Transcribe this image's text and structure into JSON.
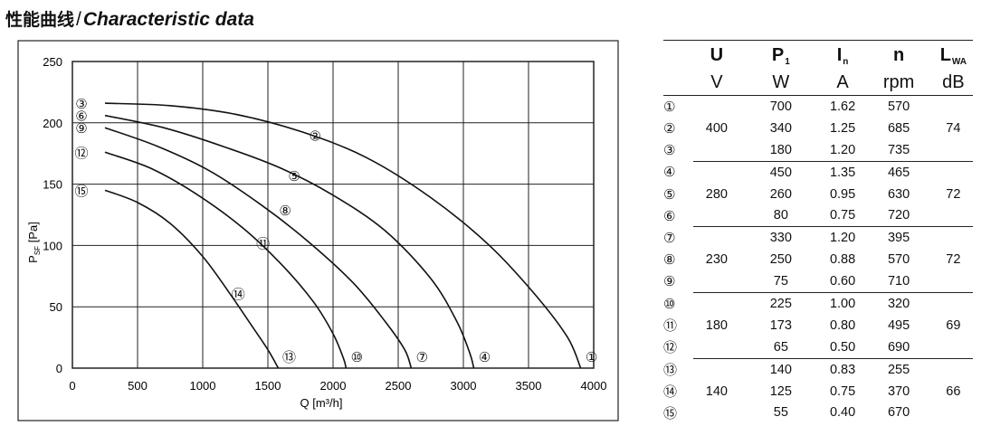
{
  "heading": {
    "cn": "性能曲线",
    "slash": "/",
    "en": "Characteristic data"
  },
  "chart_data": {
    "type": "line",
    "xlabel": "Q [m³/h]",
    "ylabel_main": "P",
    "ylabel_sub": "SF",
    "ylabel_unit": " [Pa]",
    "xlim": [
      0,
      4000
    ],
    "ylim": [
      0,
      250
    ],
    "xticks": [
      0,
      500,
      1000,
      1500,
      2000,
      2500,
      3000,
      3500,
      4000
    ],
    "yticks": [
      0,
      50,
      100,
      150,
      200,
      250
    ],
    "grid": true,
    "series": [
      {
        "name": "①③",
        "start_label": "③",
        "mid_label": "②",
        "end_label": "①",
        "points": [
          [
            250,
            216
          ],
          [
            750,
            214
          ],
          [
            1250,
            207
          ],
          [
            1750,
            193
          ],
          [
            2250,
            172
          ],
          [
            2750,
            139
          ],
          [
            3200,
            100
          ],
          [
            3550,
            60
          ],
          [
            3800,
            25
          ],
          [
            3900,
            0
          ]
        ]
      },
      {
        "name": "④⑥",
        "start_label": "⑥",
        "mid_label": "⑤",
        "end_label": "④",
        "points": [
          [
            250,
            206
          ],
          [
            700,
            196
          ],
          [
            1150,
            181
          ],
          [
            1600,
            163
          ],
          [
            2000,
            141
          ],
          [
            2400,
            112
          ],
          [
            2750,
            73
          ],
          [
            2950,
            38
          ],
          [
            3050,
            12
          ],
          [
            3080,
            0
          ]
        ]
      },
      {
        "name": "⑦⑨",
        "start_label": "⑨",
        "mid_label": "⑧",
        "end_label": "⑦",
        "points": [
          [
            250,
            196
          ],
          [
            650,
            181
          ],
          [
            1050,
            161
          ],
          [
            1450,
            133
          ],
          [
            1800,
            104
          ],
          [
            2150,
            70
          ],
          [
            2400,
            38
          ],
          [
            2550,
            15
          ],
          [
            2600,
            0
          ]
        ]
      },
      {
        "name": "⑩⑫",
        "start_label": "⑫",
        "mid_label": "⑪",
        "end_label": "⑩",
        "points": [
          [
            250,
            176
          ],
          [
            600,
            163
          ],
          [
            950,
            142
          ],
          [
            1300,
            115
          ],
          [
            1600,
            85
          ],
          [
            1850,
            54
          ],
          [
            2000,
            28
          ],
          [
            2080,
            8
          ],
          [
            2100,
            0
          ]
        ]
      },
      {
        "name": "⑬⑮",
        "start_label": "⑮",
        "mid_label": "⑭",
        "end_label": "⑬",
        "points": [
          [
            250,
            145
          ],
          [
            500,
            135
          ],
          [
            750,
            118
          ],
          [
            1000,
            91
          ],
          [
            1200,
            62
          ],
          [
            1380,
            34
          ],
          [
            1500,
            15
          ],
          [
            1580,
            0
          ]
        ]
      }
    ]
  },
  "table": {
    "headers": [
      {
        "main": "U",
        "sub": "",
        "unit": "V"
      },
      {
        "main": "P",
        "sub": "1",
        "unit": "W"
      },
      {
        "main": "I",
        "sub": "n",
        "unit": "A"
      },
      {
        "main": "n",
        "sub": "",
        "unit": "rpm"
      },
      {
        "main": "L",
        "sub": "WA",
        "unit": "dB"
      }
    ],
    "rows": [
      {
        "idx": "①",
        "u": "",
        "p": "700",
        "i": "1.62",
        "n": "570",
        "l": ""
      },
      {
        "idx": "②",
        "u": "400",
        "p": "340",
        "i": "1.25",
        "n": "685",
        "l": "74"
      },
      {
        "idx": "③",
        "u": "",
        "p": "180",
        "i": "1.20",
        "n": "735",
        "l": ""
      },
      {
        "idx": "④",
        "u": "",
        "p": "450",
        "i": "1.35",
        "n": "465",
        "l": ""
      },
      {
        "idx": "⑤",
        "u": "280",
        "p": "260",
        "i": "0.95",
        "n": "630",
        "l": "72"
      },
      {
        "idx": "⑥",
        "u": "",
        "p": "80",
        "i": "0.75",
        "n": "720",
        "l": ""
      },
      {
        "idx": "⑦",
        "u": "",
        "p": "330",
        "i": "1.20",
        "n": "395",
        "l": ""
      },
      {
        "idx": "⑧",
        "u": "230",
        "p": "250",
        "i": "0.88",
        "n": "570",
        "l": "72"
      },
      {
        "idx": "⑨",
        "u": "",
        "p": "75",
        "i": "0.60",
        "n": "710",
        "l": ""
      },
      {
        "idx": "⑩",
        "u": "",
        "p": "225",
        "i": "1.00",
        "n": "320",
        "l": ""
      },
      {
        "idx": "⑪",
        "u": "180",
        "p": "173",
        "i": "0.80",
        "n": "495",
        "l": "69"
      },
      {
        "idx": "⑫",
        "u": "",
        "p": "65",
        "i": "0.50",
        "n": "690",
        "l": ""
      },
      {
        "idx": "⑬",
        "u": "",
        "p": "140",
        "i": "0.83",
        "n": "255",
        "l": ""
      },
      {
        "idx": "⑭",
        "u": "140",
        "p": "125",
        "i": "0.75",
        "n": "370",
        "l": "66"
      },
      {
        "idx": "⑮",
        "u": "",
        "p": "55",
        "i": "0.40",
        "n": "670",
        "l": ""
      }
    ]
  }
}
